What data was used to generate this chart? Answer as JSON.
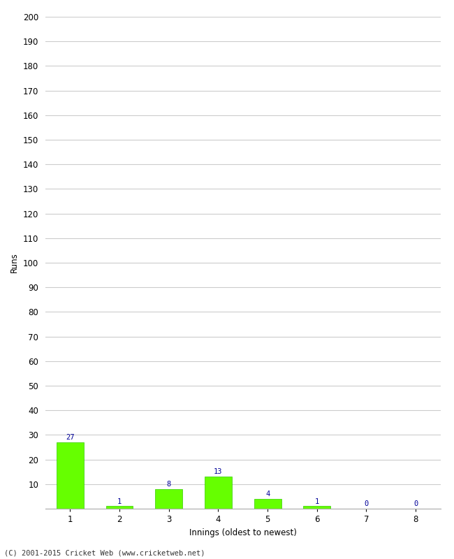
{
  "categories": [
    "1",
    "2",
    "3",
    "4",
    "5",
    "6",
    "7",
    "8"
  ],
  "values": [
    27,
    1,
    8,
    13,
    4,
    1,
    0,
    0
  ],
  "bar_color": "#66ff00",
  "bar_edge_color": "#33cc00",
  "label_color": "#000099",
  "xlabel": "Innings (oldest to newest)",
  "ylabel": "Runs",
  "ylim": [
    0,
    200
  ],
  "yticks": [
    0,
    10,
    20,
    30,
    40,
    50,
    60,
    70,
    80,
    90,
    100,
    110,
    120,
    130,
    140,
    150,
    160,
    170,
    180,
    190,
    200
  ],
  "footer": "(C) 2001-2015 Cricket Web (www.cricketweb.net)",
  "background_color": "#ffffff",
  "grid_color": "#cccccc",
  "label_fontsize": 7.5,
  "axis_fontsize": 8.5,
  "footer_fontsize": 7.5,
  "bar_width": 0.55
}
